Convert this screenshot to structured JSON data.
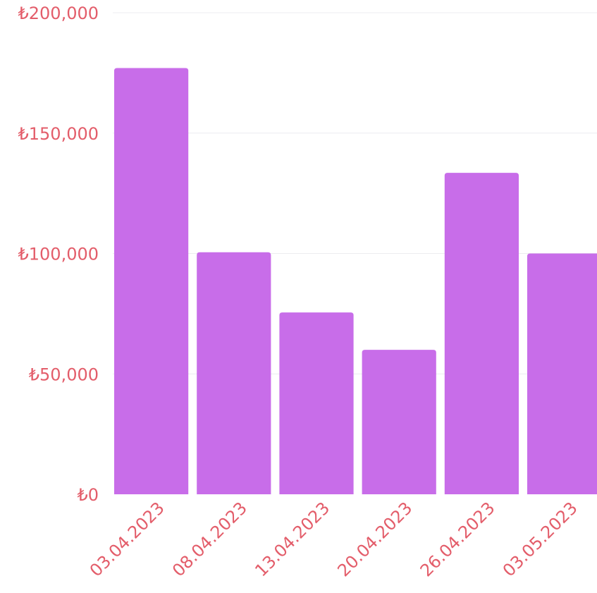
{
  "colors": {
    "bar": "#c86de9",
    "label": "#e35d6a",
    "grid": "#ececf0"
  },
  "chart_data": {
    "type": "bar",
    "title": "",
    "xlabel": "",
    "ylabel": "",
    "categories": [
      "03.04.2023",
      "08.04.2023",
      "13.04.2023",
      "20.04.2023",
      "26.04.2023",
      "03.05.2023"
    ],
    "values": [
      177000,
      100500,
      75500,
      60000,
      133500,
      100000
    ],
    "ylim": [
      0,
      200000
    ],
    "yticks": [
      0,
      50000,
      100000,
      150000,
      200000
    ],
    "ytick_labels": [
      "₺0",
      "₺50,000",
      "₺100,000",
      "₺150,000",
      "₺200,000"
    ],
    "grid": true,
    "legend": "none"
  }
}
